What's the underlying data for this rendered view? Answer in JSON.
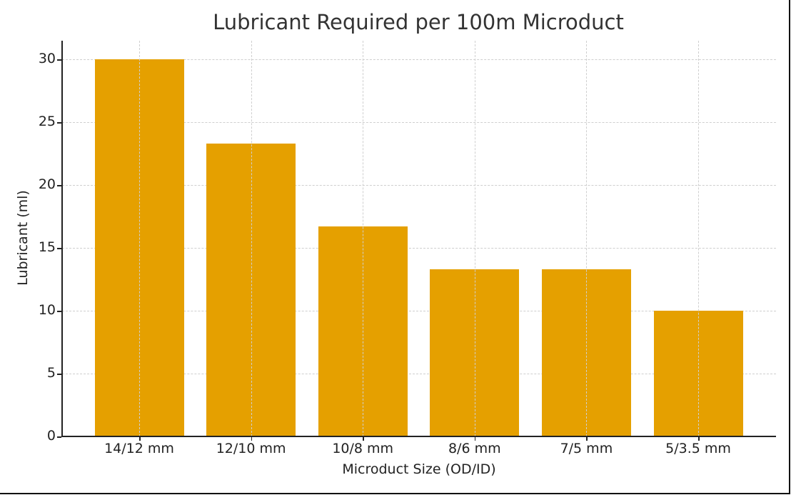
{
  "chart_data": {
    "type": "bar",
    "title": "Lubricant Required per 100m Microduct",
    "xlabel": "Microduct Size (OD/ID)",
    "ylabel": "Lubricant (ml)",
    "categories": [
      "14/12 mm",
      "12/10 mm",
      "10/8 mm",
      "8/6 mm",
      "7/5 mm",
      "5/3.5 mm"
    ],
    "values": [
      30.0,
      23.3,
      16.7,
      13.3,
      13.3,
      10.0
    ],
    "ylim": [
      0,
      31.5
    ],
    "yticks": [
      0,
      5,
      10,
      15,
      20,
      25,
      30
    ],
    "grid": true,
    "legend": null,
    "bar_color": "#E5A000"
  },
  "ytick_labels": [
    "0",
    "5",
    "10",
    "15",
    "20",
    "25",
    "30"
  ]
}
